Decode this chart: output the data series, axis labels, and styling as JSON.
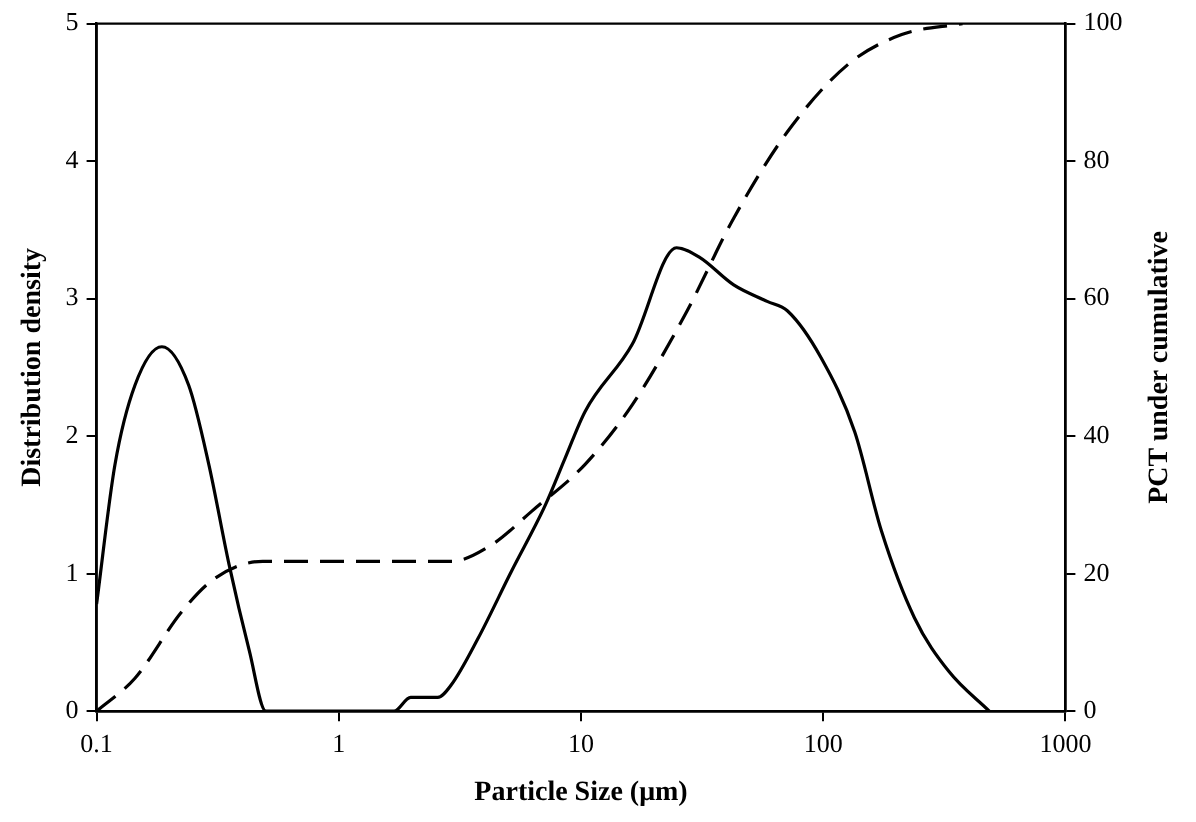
{
  "chart_data": {
    "type": "line",
    "xlabel": "Particle Size (μm)",
    "ylabel": "Distribution density",
    "y2label": "PCT under cumulative",
    "log": "x",
    "grid": false,
    "legend": false,
    "marker": "none",
    "xlim": [
      0.1,
      1000
    ],
    "xticks": [
      0.1,
      1,
      10,
      100,
      1000
    ],
    "ylim": [
      0,
      5
    ],
    "yticks": [
      0,
      1,
      2,
      3,
      4,
      5
    ],
    "y2lim": [
      0,
      100
    ],
    "y2ticks": [
      0,
      20,
      40,
      60,
      80,
      100
    ],
    "series": [
      {
        "color": "#000000",
        "line_style": "solid",
        "x": [
          0.1,
          0.119,
          0.144,
          0.186,
          0.24,
          0.291,
          0.352,
          0.427,
          0.5,
          1.69,
          1.98,
          2.56,
          2.91,
          3.76,
          5.17,
          7.13,
          8.6,
          10.4,
          16.3,
          24.8,
          30.9,
          42.7,
          58.7,
          71.3,
          98,
          135,
          174,
          238,
          330,
          485
        ],
        "values": [
          0.78,
          1.79,
          2.37,
          2.65,
          2.37,
          1.79,
          1.07,
          0.44,
          0,
          0,
          0.1,
          0.1,
          0.19,
          0.53,
          1.02,
          1.5,
          1.84,
          2.18,
          2.67,
          3.37,
          3.3,
          3.1,
          2.98,
          2.91,
          2.57,
          2.03,
          1.31,
          0.68,
          0.29,
          0
        ]
      },
      {
        "color": "#000000",
        "line_style": "dashed",
        "axis": "y2",
        "x": [
          0.1,
          0.144,
          0.225,
          0.31,
          0.485,
          2.91,
          4.28,
          6.27,
          10.4,
          16.3,
          27.3,
          42.7,
          71.3,
          126,
          211,
          376
        ],
        "values": [
          0,
          4.8,
          14.5,
          19.4,
          21.8,
          21.8,
          24.2,
          29.1,
          35.9,
          44.6,
          58.1,
          71.7,
          84.3,
          94,
          98.4,
          100
        ]
      }
    ]
  }
}
